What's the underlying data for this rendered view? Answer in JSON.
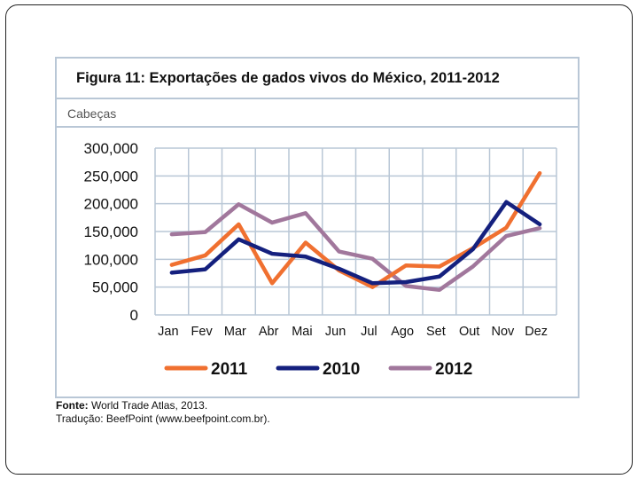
{
  "figure": {
    "title": "Figura 11: Exportações de gados vivos do México, 2011-2012",
    "unit_label": "Cabeças"
  },
  "chart_data": {
    "type": "line",
    "title": "Figura 11: Exportações de gados vivos do México, 2011-2012",
    "ylabel": "Cabeças",
    "xlabel": "",
    "categories": [
      "Jan",
      "Fev",
      "Mar",
      "Abr",
      "Mai",
      "Jun",
      "Jul",
      "Ago",
      "Set",
      "Out",
      "Nov",
      "Dez"
    ],
    "ylim": [
      0,
      300000
    ],
    "yticks": [
      0,
      50000,
      100000,
      150000,
      200000,
      250000,
      300000
    ],
    "ytick_labels": [
      "0",
      "50,000",
      "100,000",
      "150,000",
      "200,000",
      "250,000",
      "300,000"
    ],
    "grid": true,
    "legend_position": "bottom",
    "series": [
      {
        "name": "2011",
        "color": "#f07030",
        "values": [
          90000,
          107000,
          163000,
          57000,
          130000,
          80000,
          50000,
          89000,
          87000,
          120000,
          157000,
          255000
        ]
      },
      {
        "name": "2010",
        "color": "#14207e",
        "values": [
          76000,
          82000,
          136000,
          110000,
          105000,
          83000,
          57000,
          59000,
          69000,
          118000,
          203000,
          163000
        ]
      },
      {
        "name": "2012",
        "color": "#a1779c",
        "values": [
          145000,
          149000,
          199000,
          166000,
          183000,
          114000,
          101000,
          52000,
          45000,
          87000,
          142000,
          156000
        ]
      }
    ]
  },
  "source": {
    "label1": "Fonte:",
    "text1": " World Trade Atlas, 2013.",
    "label2": "Tradução:",
    "text2": " BeefPoint (www.beefpoint.com.br)."
  }
}
